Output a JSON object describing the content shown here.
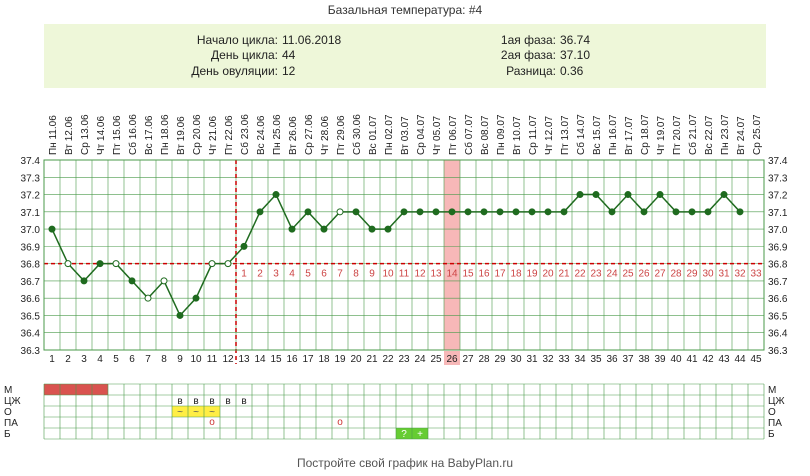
{
  "title": "Базальная температура: #4",
  "info": {
    "cycle_start_label": "Начало цикла:",
    "cycle_start_value": "11.06.2018",
    "cycle_day_label": "День цикла:",
    "cycle_day_value": "44",
    "ovulation_day_label": "День овуляции:",
    "ovulation_day_value": "12",
    "phase1_label": "1ая фаза:",
    "phase1_value": "36.74",
    "phase2_label": "2ая фаза:",
    "phase2_value": "37.10",
    "diff_label": "Разница:",
    "diff_value": "0.36"
  },
  "footer": "Постройте свой график на BabyPlan.ru",
  "chart_data": {
    "type": "line",
    "ylim": [
      36.3,
      37.4
    ],
    "yticks": [
      "37.4",
      "37.3",
      "37.2",
      "37.1",
      "37.0",
      "36.9",
      "36.8",
      "36.7",
      "36.6",
      "36.5",
      "36.4",
      "36.3"
    ],
    "cycle_days": [
      "1",
      "2",
      "3",
      "4",
      "5",
      "6",
      "7",
      "8",
      "9",
      "10",
      "11",
      "12",
      "13",
      "14",
      "15",
      "16",
      "17",
      "18",
      "19",
      "20",
      "21",
      "22",
      "23",
      "24",
      "25",
      "26",
      "27",
      "28",
      "29",
      "30",
      "31",
      "32",
      "33",
      "34",
      "35",
      "36",
      "37",
      "38",
      "39",
      "40",
      "41",
      "42",
      "43",
      "44",
      "45"
    ],
    "dates": [
      "Пн 11.06",
      "Вт 12.06",
      "Ср 13.06",
      "Чт 14.06",
      "Пт 15.06",
      "Сб 16.06",
      "Вс 17.06",
      "Пн 18.06",
      "Вт 19.06",
      "Ср 20.06",
      "Чт 21.06",
      "Пт 22.06",
      "Сб 23.06",
      "Вс 24.06",
      "Пн 25.06",
      "Вт 26.06",
      "Ср 27.06",
      "Чт 28.06",
      "Пт 29.06",
      "Сб 30.06",
      "Вс 01.07",
      "Пн 02.07",
      "Вт 03.07",
      "Ср 04.07",
      "Чт 05.07",
      "Пт 06.07",
      "Сб 07.07",
      "Вс 08.07",
      "Пн 09.07",
      "Вт 10.07",
      "Ср 11.07",
      "Чт 12.07",
      "Пт 13.07",
      "Сб 14.07",
      "Вс 15.07",
      "Пн 16.07",
      "Вт 17.07",
      "Ср 18.07",
      "Чт 19.07",
      "Пт 20.07",
      "Сб 21.07",
      "Вс 22.07",
      "Пн 23.07",
      "Вт 24.07",
      "Ср 25.07"
    ],
    "temperatures": [
      37.0,
      36.8,
      36.7,
      36.8,
      36.8,
      36.7,
      36.6,
      36.7,
      36.5,
      36.6,
      36.8,
      36.8,
      36.9,
      37.1,
      37.2,
      37.0,
      37.1,
      37.0,
      37.1,
      37.1,
      37.0,
      37.0,
      37.1,
      37.1,
      37.1,
      37.1,
      37.1,
      37.1,
      37.1,
      37.1,
      37.1,
      37.1,
      37.1,
      37.2,
      37.2,
      37.1,
      37.2,
      37.1,
      37.2,
      37.1,
      37.1,
      37.1,
      37.2,
      37.1
    ],
    "hollow_points": [
      2,
      5,
      7,
      8,
      11,
      12,
      19
    ],
    "coverline": 36.8,
    "ovulation_day": 12,
    "highlight_day": 26,
    "luteal_day_labels": [
      "1",
      "2",
      "3",
      "4",
      "5",
      "6",
      "7",
      "8",
      "9",
      "10",
      "11",
      "12",
      "13",
      "14",
      "15",
      "16",
      "17",
      "18",
      "19",
      "20",
      "21",
      "22",
      "23",
      "24",
      "25",
      "26",
      "27",
      "28",
      "29",
      "30",
      "31",
      "32",
      "33"
    ],
    "colors": {
      "line": "#1f6b1f",
      "coverline": "#cc0000",
      "highlight": "#f7b8b8",
      "luteal_label": "#cc4444",
      "menses": "#d9534f",
      "mucus": "#ffee44",
      "b_mark": "#66cc33",
      "info_bg": "#eef7d9",
      "grid": "#4a9a4a"
    }
  },
  "table": {
    "row_labels": [
      "М",
      "ЦЖ",
      "О",
      "ПА",
      "Б"
    ],
    "menses_days": [
      1,
      2,
      3,
      4
    ],
    "cm_days": [
      9,
      10,
      11,
      12,
      13
    ],
    "cm_mark": "в",
    "o_days": [
      9,
      10,
      11
    ],
    "o_mark": "~",
    "pa_days": [
      11,
      19
    ],
    "pa_mark": "о",
    "b_marks": [
      {
        "day": 23,
        "mark": "?"
      },
      {
        "day": 24,
        "mark": "+"
      }
    ]
  }
}
